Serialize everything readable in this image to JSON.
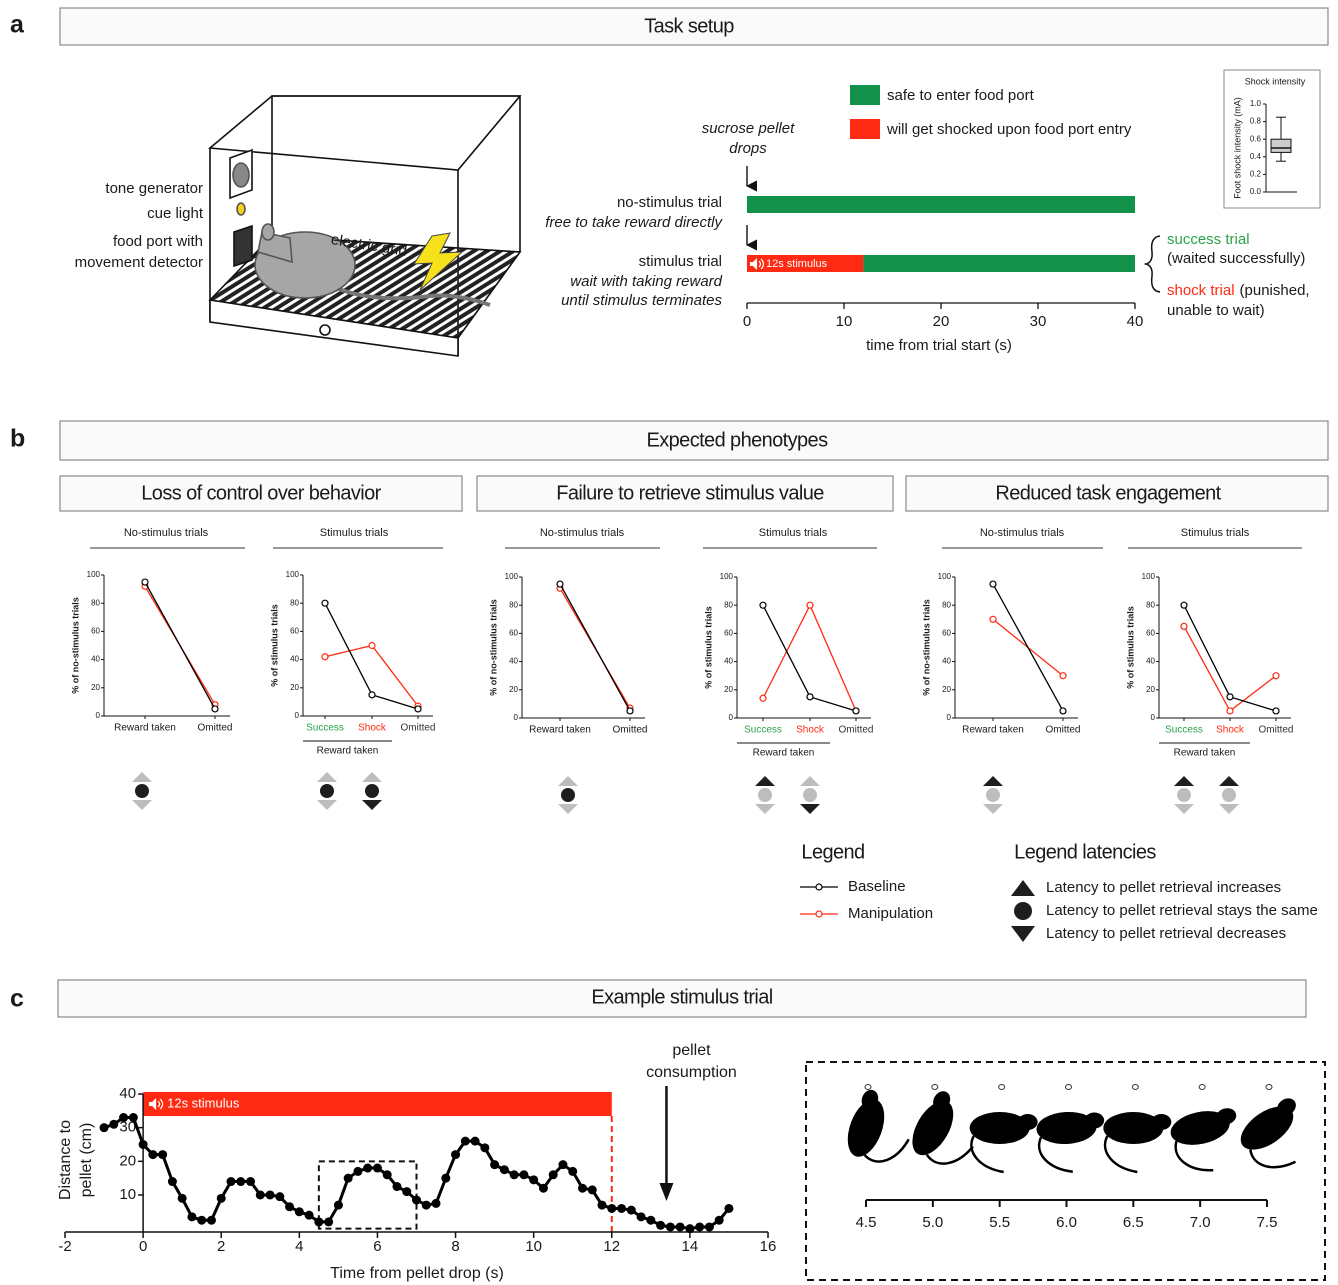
{
  "panels": {
    "a": {
      "letter": "a",
      "title": "Task setup",
      "apparatus": {
        "tone_generator": "tone generator",
        "cue_light": "cue light",
        "food_port": [
          "food port with",
          "movement detector"
        ],
        "grid": "electric grid"
      },
      "pellet_note": [
        "sucrose pellet",
        "drops"
      ],
      "outcomes": {
        "success": "success trial",
        "success_note": "(waited successfully)",
        "shock": "shock trial",
        "shock_note": [
          "(punished,",
          "unable to wait)"
        ]
      }
    },
    "b": {
      "letter": "b",
      "title": "Expected phenotypes",
      "groups": [
        "Loss of control over behavior",
        "Failure to retrieve stimulus value",
        "Reduced task engagement"
      ],
      "legend_title": "Legend",
      "latency_legend": {
        "title": "Legend latencies",
        "items": [
          "Latency to pellet retrieval increases",
          "Latency to pellet retrieval stays the same",
          "Latency to pellet retrieval decreases"
        ]
      }
    },
    "c": {
      "letter": "c",
      "title": "Example stimulus trial"
    }
  },
  "chart_data": [
    {
      "type": "timeline",
      "xlabel": "time from trial start (s)",
      "xlim": [
        0,
        40
      ],
      "xticks": [
        0,
        10,
        20,
        30,
        40
      ],
      "categories": [
        "no-stimulus trial",
        "stimulus trial"
      ],
      "category_notes": [
        [
          "free to take reward directly"
        ],
        [
          "wait with taking reward",
          "until stimulus terminates"
        ]
      ],
      "series": [
        {
          "name": "safe to enter food port",
          "color": "#12914a",
          "values": [
            [
              0,
              40
            ],
            [
              12,
              40
            ]
          ]
        },
        {
          "name": "will get shocked upon food port entry",
          "color": "#ff2a12",
          "values": [
            null,
            [
              0,
              12
            ]
          ],
          "value_labels": [
            null,
            "12s stimulus"
          ]
        }
      ]
    },
    {
      "type": "box",
      "title": "Shock intensity",
      "ylabel": "Foot shock intensity (mA)",
      "ylim": [
        0,
        1
      ],
      "yticks": [
        {
          "value": 0,
          "label": "0.0"
        },
        0.2,
        0.4,
        0.6,
        0.8,
        {
          "value": 1,
          "label": "1.0"
        }
      ],
      "box": {
        "min": 0.35,
        "q1": 0.45,
        "median": 0.5,
        "q3": 0.6,
        "max": 0.85
      },
      "color": "#cccccc"
    },
    {
      "type": "line",
      "title": "No-stimulus trials",
      "ylabel": "% of no-stimulus trials",
      "categories": [
        "Reward taken",
        "Omitted"
      ],
      "ylim": [
        0,
        100
      ],
      "yticks": [
        0,
        20,
        40,
        60,
        80,
        100
      ],
      "series": [
        {
          "name": "Baseline",
          "color": "#000000",
          "values": [
            95,
            5
          ]
        },
        {
          "name": "Manipulation",
          "color": "#ff2a12",
          "values": [
            92,
            8
          ]
        }
      ]
    },
    {
      "type": "line",
      "title": "Stimulus trials",
      "ylabel": "% of stimulus trials",
      "categories": [
        "Success",
        "Shock",
        "Omitted"
      ],
      "category_colors": [
        "#2ca24a",
        "#ff2a12",
        "#333333"
      ],
      "category_group": "Reward taken",
      "ylim": [
        0,
        100
      ],
      "yticks": [
        0,
        20,
        40,
        60,
        80,
        100
      ],
      "series": [
        {
          "color": "#000000",
          "values": [
            80,
            15,
            5
          ]
        },
        {
          "color": "#ff2a12",
          "values": [
            42,
            50,
            7
          ]
        }
      ]
    },
    {
      "type": "line",
      "title": "No-stimulus trials",
      "ylabel": "% of no-stimulus trials",
      "categories": [
        "Reward taken",
        "Omitted"
      ],
      "ylim": [
        0,
        100
      ],
      "yticks": [
        0,
        20,
        40,
        60,
        80,
        100
      ],
      "series": [
        {
          "color": "#000000",
          "values": [
            95,
            5
          ]
        },
        {
          "color": "#ff2a12",
          "values": [
            92,
            7
          ]
        }
      ]
    },
    {
      "type": "line",
      "title": "Stimulus trials",
      "ylabel": "% of stimulus trials",
      "categories": [
        "Success",
        "Shock",
        "Omitted"
      ],
      "category_colors": [
        "#2ca24a",
        "#ff2a12",
        "#333333"
      ],
      "category_group": "Reward taken",
      "ylim": [
        0,
        100
      ],
      "yticks": [
        0,
        20,
        40,
        60,
        80,
        100
      ],
      "series": [
        {
          "color": "#000000",
          "values": [
            80,
            15,
            5
          ]
        },
        {
          "color": "#ff2a12",
          "values": [
            14,
            80,
            5
          ]
        }
      ]
    },
    {
      "type": "line",
      "title": "No-stimulus trials",
      "ylabel": "% of no-stimulus trials",
      "categories": [
        "Reward taken",
        "Omitted"
      ],
      "ylim": [
        0,
        100
      ],
      "yticks": [
        0,
        20,
        40,
        60,
        80,
        100
      ],
      "series": [
        {
          "color": "#000000",
          "values": [
            95,
            5
          ]
        },
        {
          "color": "#ff2a12",
          "values": [
            70,
            30
          ]
        }
      ]
    },
    {
      "type": "line",
      "title": "Stimulus trials",
      "ylabel": "% of stimulus trials",
      "categories": [
        "Success",
        "Shock",
        "Omitted"
      ],
      "category_colors": [
        "#2ca24a",
        "#ff2a12",
        "#333333"
      ],
      "category_group": "Reward taken",
      "ylim": [
        0,
        100
      ],
      "yticks": [
        0,
        20,
        40,
        60,
        80,
        100
      ],
      "series": [
        {
          "color": "#000000",
          "values": [
            80,
            15,
            5
          ]
        },
        {
          "color": "#ff2a12",
          "values": [
            65,
            5,
            30
          ]
        }
      ]
    },
    {
      "type": "trace",
      "xlabel": "Time from pellet drop (s)",
      "ylabel": [
        "Distance to",
        "pellet (cm)"
      ],
      "xlim": [
        -2,
        16
      ],
      "xticks": [
        -2,
        0,
        2,
        4,
        6,
        8,
        10,
        12,
        14,
        16
      ],
      "ylim": [
        -1,
        40
      ],
      "yticks": [
        10,
        20,
        30,
        40
      ],
      "color": "#000000",
      "x": [
        -1,
        -0.75,
        -0.5,
        -0.25,
        0,
        0.25,
        0.5,
        0.75,
        1,
        1.25,
        1.5,
        1.75,
        2,
        2.25,
        2.5,
        2.75,
        3,
        3.25,
        3.5,
        3.75,
        4,
        4.25,
        4.5,
        4.75,
        5,
        5.25,
        5.5,
        5.75,
        6,
        6.25,
        6.5,
        6.75,
        7,
        7.25,
        7.5,
        7.75,
        8,
        8.25,
        8.5,
        8.75,
        9,
        9.25,
        9.5,
        9.75,
        10,
        10.25,
        10.5,
        10.75,
        11,
        11.25,
        11.5,
        11.75,
        12,
        12.25,
        12.5,
        12.75,
        13,
        13.25,
        13.5,
        13.75,
        14,
        14.25,
        14.5,
        14.75,
        15
      ],
      "values": [
        30,
        31,
        33,
        33,
        25,
        22,
        22,
        14,
        9,
        3.5,
        2.5,
        2.5,
        9,
        14,
        14,
        14,
        10,
        10,
        9.5,
        6.5,
        5,
        4,
        2,
        2,
        7,
        15,
        17,
        18,
        18,
        16,
        12.5,
        11,
        8.5,
        7,
        7.5,
        15,
        22,
        26,
        26,
        24,
        19,
        17.5,
        16,
        16,
        14.5,
        12,
        16,
        19,
        17,
        12,
        11.5,
        7,
        6,
        6,
        5.5,
        3.5,
        2.5,
        1,
        0.5,
        0.5,
        0,
        0.5,
        0.5,
        2.5,
        6
      ],
      "stimulus": {
        "range": [
          0,
          12
        ],
        "label": "12s stimulus",
        "color": "#ff2a12"
      },
      "zoom_box": {
        "x": [
          4.5,
          7
        ],
        "y": [
          0,
          20
        ]
      },
      "annotation": {
        "text": [
          "pellet",
          "consumption"
        ],
        "x": 13.4
      }
    },
    {
      "type": "frames",
      "xlim": [
        4.5,
        7.5
      ],
      "xticks": [
        4.5,
        {
          "value": 5,
          "label": "5.0"
        },
        5.5,
        {
          "value": 6,
          "label": "6.0"
        },
        6.5,
        {
          "value": 7,
          "label": "7.0"
        },
        7.5
      ]
    }
  ]
}
